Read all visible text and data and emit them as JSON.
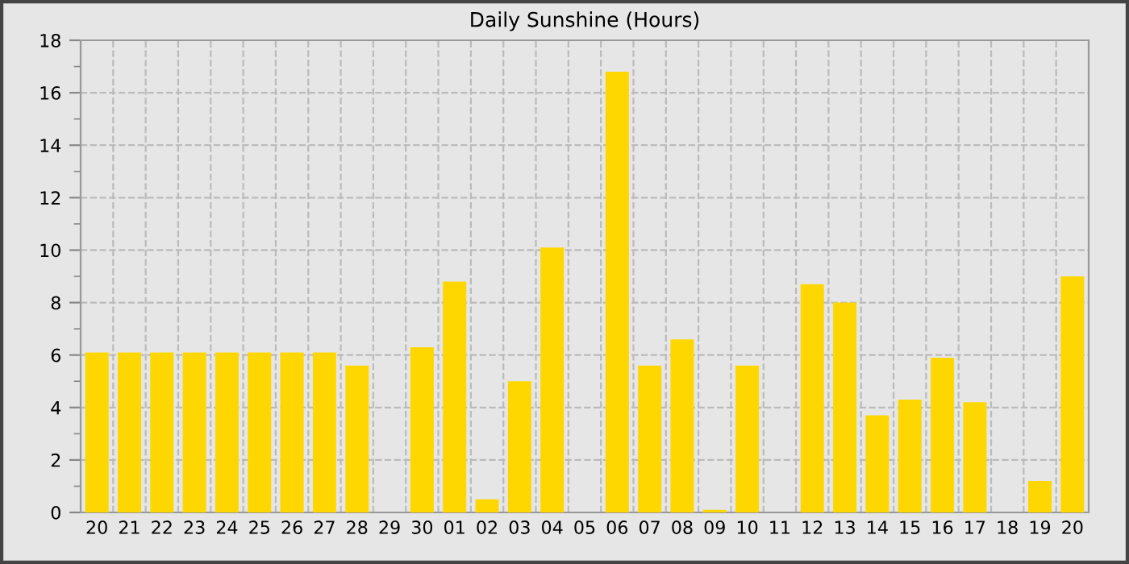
{
  "chart_data": {
    "type": "bar",
    "title": "Daily Sunshine (Hours)",
    "categories": [
      "20",
      "21",
      "22",
      "23",
      "24",
      "25",
      "26",
      "27",
      "28",
      "29",
      "30",
      "01",
      "02",
      "03",
      "04",
      "05",
      "06",
      "07",
      "08",
      "09",
      "10",
      "11",
      "12",
      "13",
      "14",
      "15",
      "16",
      "17",
      "18",
      "19",
      "20"
    ],
    "values": [
      6.1,
      6.1,
      6.1,
      6.1,
      6.1,
      6.1,
      6.1,
      6.1,
      5.6,
      0,
      6.3,
      8.8,
      0.5,
      5.0,
      10.1,
      0,
      16.8,
      5.6,
      6.6,
      0.1,
      5.6,
      0,
      8.7,
      8.0,
      3.7,
      4.3,
      5.9,
      4.2,
      0,
      1.2,
      9.0
    ],
    "color": "#ffd700",
    "ylim": [
      0,
      18
    ],
    "yticks": [
      0,
      {
        "value": 1,
        "label": null
      },
      2,
      {
        "value": 3,
        "label": null
      },
      4,
      {
        "value": 5,
        "label": null
      },
      6,
      {
        "value": 7,
        "label": null
      },
      8,
      {
        "value": 9,
        "label": null
      },
      10,
      {
        "value": 11,
        "label": null
      },
      12,
      {
        "value": 13,
        "label": null
      },
      14,
      {
        "value": 15,
        "label": null
      },
      16,
      {
        "value": 17,
        "label": null
      },
      18
    ],
    "grid": true
  }
}
